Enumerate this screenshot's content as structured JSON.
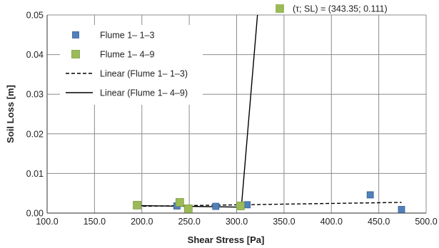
{
  "chart_data": {
    "type": "scatter",
    "xlabel": "Shear Stress [Pa]",
    "ylabel": "Soil Loss [m]",
    "xlim": [
      100,
      500
    ],
    "ylim": [
      0,
      0.05
    ],
    "x_ticks": [
      100,
      150,
      200,
      250,
      300,
      350,
      400,
      450,
      500
    ],
    "x_tick_labels": [
      "100.0",
      "150.0",
      "200.0",
      "250.0",
      "300.0",
      "350.0",
      "400.0",
      "450.0",
      "500.0"
    ],
    "y_ticks": [
      0,
      0.01,
      0.02,
      0.03,
      0.04,
      0.05
    ],
    "y_tick_labels": [
      "0.00",
      "0.01",
      "0.02",
      "0.03",
      "0.04",
      "0.05"
    ],
    "grid": true,
    "legend_position": "top-left",
    "series": [
      {
        "name": "Flume 1– 1–3",
        "kind": "points",
        "color": "#4f81bd",
        "points": [
          [
            237,
            0.0018
          ],
          [
            278,
            0.0017
          ],
          [
            311,
            0.0021
          ],
          [
            441,
            0.0046
          ],
          [
            474,
            0.0009
          ]
        ]
      },
      {
        "name": "Flume 1– 4–9",
        "kind": "points",
        "color": "#9bbb59",
        "points": [
          [
            195,
            0.002
          ],
          [
            240,
            0.0027
          ],
          [
            249,
            0.0011
          ],
          [
            304,
            0.0018
          ]
        ]
      },
      {
        "name": "Linear (Flume 1– 1–3)",
        "kind": "trendline",
        "style": "dashed",
        "color": "#000000",
        "points": [
          [
            195,
            0.0017
          ],
          [
            474,
            0.0027
          ]
        ]
      },
      {
        "name": "Linear (Flume 1– 4–9)",
        "kind": "trendline",
        "style": "solid",
        "color": "#000000",
        "points": [
          [
            195,
            0.0019
          ],
          [
            305,
            0.0015
          ],
          [
            322,
            0.05
          ]
        ]
      }
    ],
    "annotation": {
      "label": "(τ; SL) = (343.35; 0.111)",
      "marker_color": "#9bbb59"
    }
  }
}
